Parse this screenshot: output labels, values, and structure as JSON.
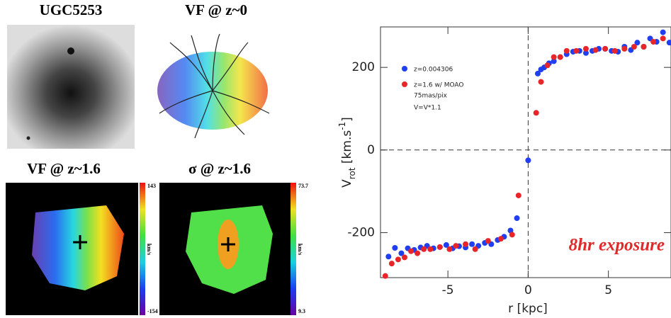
{
  "panels": [
    {
      "title": "UGC5253"
    },
    {
      "title": "VF @ z~0"
    },
    {
      "title": "VF @ z~1.6",
      "colorbar": [
        "143",
        "km/s",
        "-154"
      ]
    },
    {
      "title": "σ @ z~1.6",
      "colorbar": [
        "73.7",
        "km/s",
        "9.3"
      ]
    }
  ],
  "chart_data": {
    "type": "scatter",
    "xlabel": "r [kpc]",
    "ylabel": [
      "V",
      "rot",
      " [km.s",
      "-1",
      "]"
    ],
    "xlim": [
      -9.2,
      8.9
    ],
    "ylim": [
      -309,
      298
    ],
    "xticks": [
      -5,
      0,
      5
    ],
    "yticks": [
      -200,
      0,
      200
    ],
    "hlines": [
      0
    ],
    "vlines": [
      0
    ],
    "annotations": [
      "75mas/pix",
      "V=V*1.1"
    ],
    "highlight": "8hr exposure",
    "highlight_color": "#e02a2a",
    "series": [
      {
        "name": "z=0.004306",
        "color": "#1f3ff0",
        "x": [
          -8.7,
          -8.3,
          -7.9,
          -7.5,
          -7.1,
          -6.7,
          -6.3,
          -5.9,
          -5.5,
          -5.1,
          -4.7,
          -4.3,
          -3.9,
          -3.5,
          -3.1,
          -2.7,
          -2.3,
          -1.9,
          -1.5,
          -1.1,
          -0.7,
          0,
          0.6,
          0.8,
          1.0,
          1.3,
          1.6,
          2.0,
          2.4,
          2.8,
          3.2,
          3.6,
          4.0,
          4.4,
          4.8,
          5.2,
          5.6,
          6.0,
          6.4,
          6.8,
          7.2,
          7.6,
          8.0,
          8.4,
          8.8
        ],
        "values": [
          -258,
          -237,
          -250,
          -238,
          -242,
          -236,
          -232,
          -238,
          -235,
          -230,
          -238,
          -233,
          -236,
          -228,
          -232,
          -225,
          -228,
          -218,
          -210,
          -195,
          -165,
          -25,
          185,
          195,
          200,
          210,
          215,
          225,
          232,
          238,
          240,
          235,
          240,
          245,
          245,
          240,
          238,
          250,
          242,
          260,
          250,
          270,
          262,
          285,
          260
        ]
      },
      {
        "name": "z=1.6 w/ MOAO",
        "color": "#e8262a",
        "x": [
          -8.9,
          -8.5,
          -8.1,
          -7.7,
          -7.3,
          -6.9,
          -6.5,
          -6.1,
          -5.5,
          -4.9,
          -4.5,
          -3.9,
          -3.3,
          -2.5,
          -1.7,
          -1.0,
          -0.6,
          0.5,
          0.8,
          1.2,
          1.6,
          2.0,
          2.4,
          3.0,
          3.6,
          4.2,
          4.8,
          5.4,
          6.0,
          6.6,
          7.2,
          7.8,
          8.4
        ],
        "values": [
          -305,
          -275,
          -265,
          -260,
          -245,
          -250,
          -240,
          -240,
          -235,
          -240,
          -232,
          -228,
          -240,
          -220,
          -215,
          -205,
          -110,
          90,
          165,
          205,
          225,
          225,
          240,
          240,
          245,
          242,
          245,
          240,
          245,
          250,
          250,
          262,
          270
        ]
      }
    ]
  }
}
